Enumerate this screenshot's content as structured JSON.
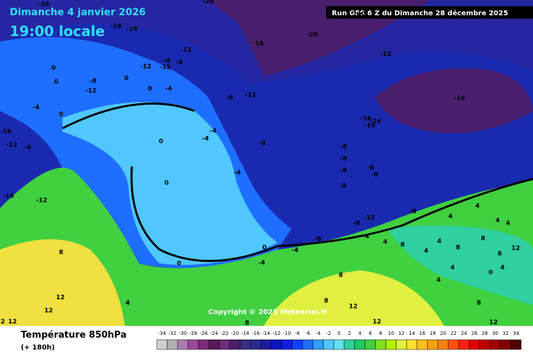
{
  "header": {
    "date": "Dimanche 4 janvier 2026",
    "time": "19:00 locale",
    "run": "Run GFS 6 Z du Dimanche 28 décembre 2025"
  },
  "map": {
    "contour_labels": [
      "-16",
      "-20",
      "-20",
      "-20",
      "-16",
      "-16",
      "-16",
      "-12",
      "-12",
      "-12",
      "-12",
      "-4",
      "-4",
      "0",
      "0",
      "-8",
      "-12",
      "0",
      "0",
      "-4",
      "-8",
      "-12",
      "-16",
      "-4",
      "0",
      "-16",
      "-12",
      "-8",
      "-16",
      "-16",
      "-16",
      "-4",
      "-4",
      "0",
      "-8",
      "-8",
      "-8",
      "-8",
      "-8",
      "-8",
      "-8",
      "-4",
      "0",
      "-16",
      "-12",
      "4",
      "-8",
      "-12",
      "-8",
      "4",
      "4",
      "4",
      "8",
      "0",
      "-4",
      "-8",
      "-4",
      "4",
      "4",
      "8",
      "4",
      "8",
      "8",
      "8",
      "12",
      "0",
      "-4",
      "4",
      "4",
      "8",
      "0",
      "4",
      "12",
      "4",
      "8",
      "12",
      "8",
      "12",
      "2",
      "12",
      "8",
      "12",
      "12"
    ]
  },
  "copyright": "Copyright © 2025 Meteociel.fr",
  "footer": {
    "title": "Température 850hPa",
    "lead": "(+ 180h)"
  },
  "colorbar": {
    "values": [
      -34,
      -32,
      -30,
      -28,
      -26,
      -24,
      -22,
      -20,
      -18,
      -16,
      -14,
      -12,
      -10,
      -8,
      -6,
      -4,
      -2,
      0,
      2,
      4,
      6,
      8,
      10,
      12,
      14,
      16,
      18,
      20,
      22,
      24,
      26,
      28,
      30,
      32,
      34
    ],
    "colors": [
      "#d0d0d0",
      "#b0b0b0",
      "#b07ab0",
      "#9a4a9a",
      "#7a2a7a",
      "#5a1a5a",
      "#6e2a7e",
      "#4a1f6e",
      "#3a2a80",
      "#2a2a90",
      "#1a1aa0",
      "#0a14c0",
      "#1020e0",
      "#1040ff",
      "#1e6eff",
      "#30a0ff",
      "#50c8ff",
      "#60e0f0",
      "#30d0a0",
      "#20c860",
      "#40d040",
      "#80e020",
      "#b0f000",
      "#e0f040",
      "#ffe030",
      "#ffc020",
      "#ffa010",
      "#ff8010",
      "#ff5010",
      "#ff2010",
      "#e00000",
      "#c00000",
      "#a00000",
      "#800000",
      "#500000"
    ]
  }
}
